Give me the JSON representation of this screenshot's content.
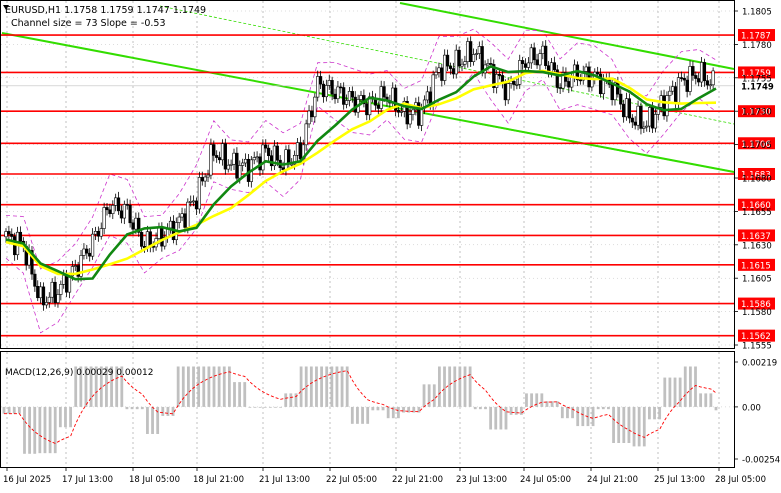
{
  "header": {
    "symbol_line": "EURUSD,H1  1.1758 1.1759 1.1747 1.1749",
    "channel_line": "Channel size = 73 Slope = -0.53"
  },
  "price_axis": {
    "ticks": [
      "1.1805",
      "1.1780",
      "1.1755",
      "1.1730",
      "1.1705",
      "1.1680",
      "1.1655",
      "1.1630",
      "1.1605",
      "1.1580",
      "1.1555"
    ]
  },
  "levels": [
    {
      "label": "1.1787",
      "value": 1.1787
    },
    {
      "label": "1.1759",
      "value": 1.1759
    },
    {
      "label": "1.1730",
      "value": 1.173
    },
    {
      "label": "1.1706",
      "value": 1.1706
    },
    {
      "label": "1.1683",
      "value": 1.1683
    },
    {
      "label": "1.1660",
      "value": 1.166
    },
    {
      "label": "1.1637",
      "value": 1.1637
    },
    {
      "label": "1.1615",
      "value": 1.1615
    },
    {
      "label": "1.1586",
      "value": 1.1586
    },
    {
      "label": "1.1562",
      "value": 1.1562
    }
  ],
  "current_price": {
    "label": "1.1749",
    "value": 1.1749
  },
  "macd": {
    "label": "MACD(12,26,9) 0.00029 0.00012",
    "ticks": [
      "0.00219",
      "0.00",
      "-0.00254"
    ]
  },
  "time_axis": {
    "labels": [
      "16 Jul 2025",
      "17 Jul 13:00",
      "18 Jul 05:00",
      "18 Jul 21:00",
      "21 Jul 13:00",
      "22 Jul 05:00",
      "22 Jul 21:00",
      "23 Jul 13:00",
      "24 Jul 05:00",
      "24 Jul 21:00",
      "25 Jul 13:00",
      "28 Jul 05:00"
    ]
  },
  "colors": {
    "level_line": "#ff0000",
    "channel": "#33dd00",
    "ma_fast": "#ffff00",
    "ma_slow": "#118811",
    "bands": "#cc33cc",
    "candles": "#000000",
    "macd_hist": "#c0c0c0",
    "macd_signal": "#ff0000"
  },
  "chart_data": {
    "type": "candlestick",
    "symbol": "EURUSD,H1",
    "ohlc_last": {
      "open": 1.1758,
      "high": 1.1759,
      "low": 1.1747,
      "close": 1.1749
    },
    "channel": {
      "size": 73,
      "slope": -0.53
    },
    "x": [
      "16 Jul 2025",
      "17 Jul 13:00",
      "18 Jul 05:00",
      "18 Jul 21:00",
      "21 Jul 13:00",
      "22 Jul 05:00",
      "22 Jul 21:00",
      "23 Jul 13:00",
      "24 Jul 05:00",
      "24 Jul 21:00",
      "25 Jul 13:00",
      "28 Jul 05:00"
    ],
    "close_path": [
      1.1636,
      1.163,
      1.1588,
      1.1595,
      1.1612,
      1.1632,
      1.166,
      1.1655,
      1.163,
      1.1636,
      1.1647,
      1.1666,
      1.17,
      1.169,
      1.1688,
      1.17,
      1.169,
      1.17,
      1.175,
      1.1745,
      1.1738,
      1.1735,
      1.1742,
      1.1728,
      1.173,
      1.1762,
      1.1765,
      1.1775,
      1.176,
      1.1745,
      1.1768,
      1.1772,
      1.175,
      1.1758,
      1.1755,
      1.1748,
      1.1726,
      1.172,
      1.1737,
      1.1752,
      1.1758,
      1.1749
    ],
    "ylim": [
      1.1555,
      1.1815
    ],
    "macd": {
      "params": "12,26,9",
      "main": 0.00029,
      "signal": 0.00012,
      "ylim": [
        -0.00254,
        0.00219
      ]
    }
  }
}
